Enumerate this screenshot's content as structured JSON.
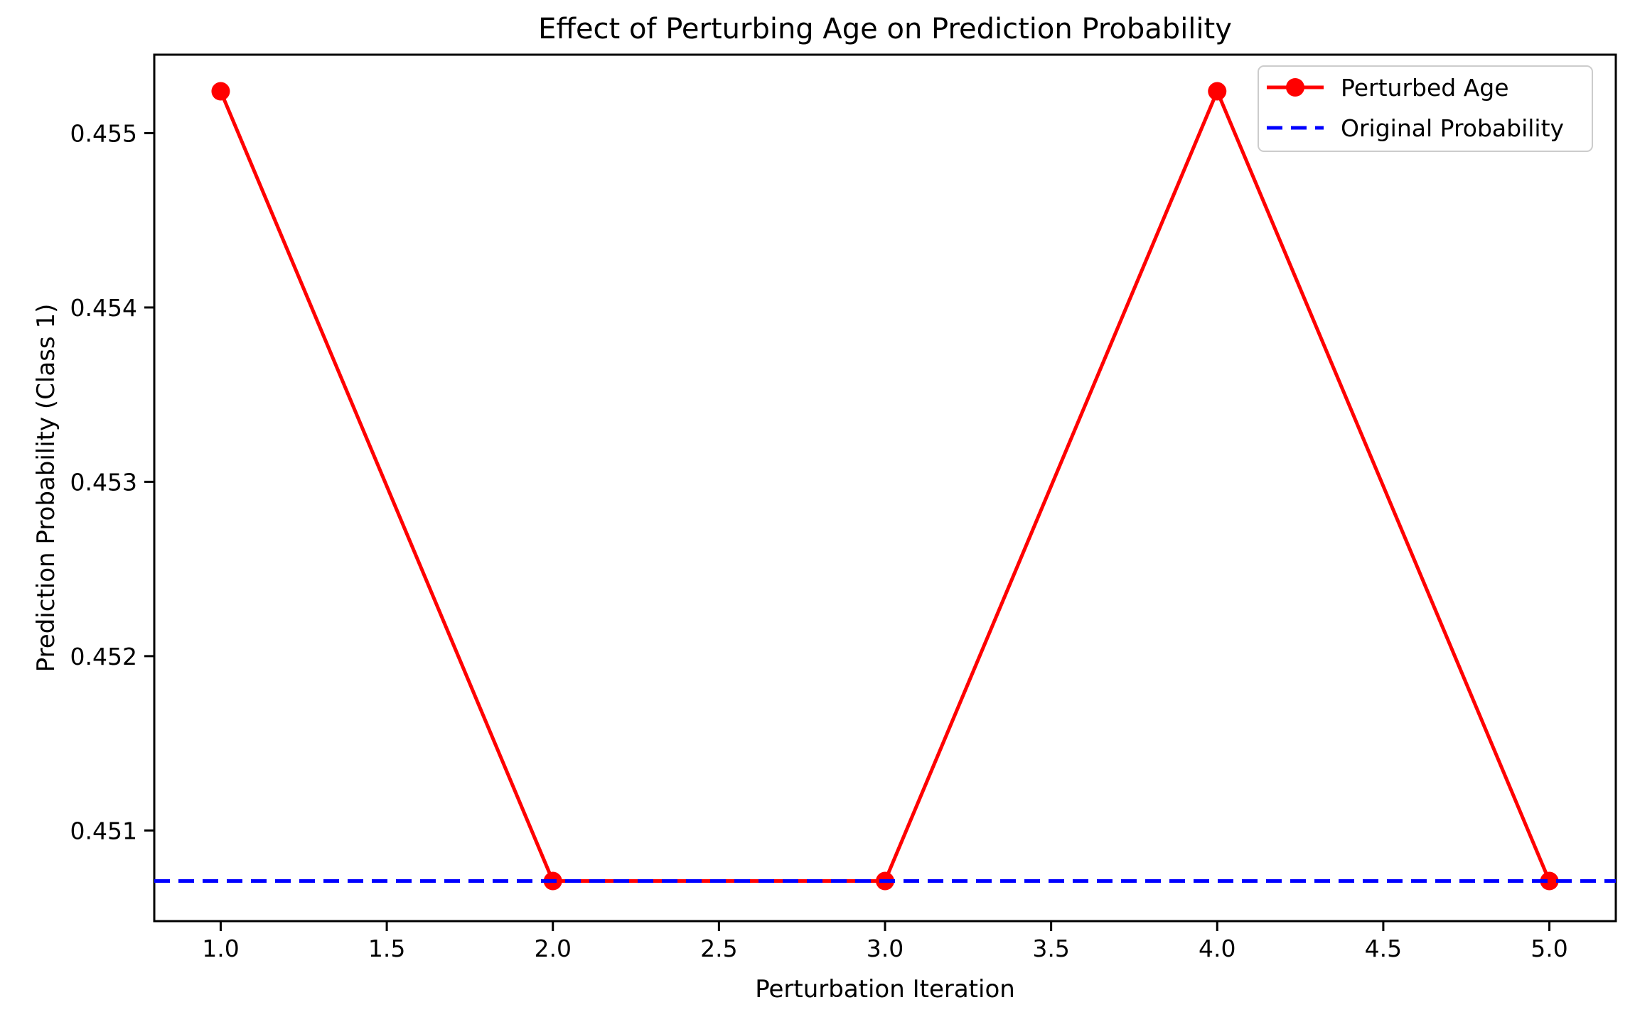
{
  "chart_data": {
    "type": "line",
    "title": "Effect of Perturbing Age on Prediction Probability",
    "xlabel": "Perturbation Iteration",
    "ylabel": "Prediction Probability (Class 1)",
    "x": [
      1,
      2,
      3,
      4,
      5
    ],
    "series": [
      {
        "name": "Perturbed Age",
        "color": "#ff0000",
        "line_style": "solid",
        "marker": "circle",
        "values": [
          0.45524,
          0.45071,
          0.45071,
          0.45524,
          0.45071
        ]
      },
      {
        "name": "Original Probability",
        "color": "#0000ff",
        "line_style": "dashed",
        "marker": "none",
        "kind": "hline",
        "value": 0.45071
      }
    ],
    "xlim": [
      0.8,
      5.2
    ],
    "ylim": [
      0.45048,
      0.45545
    ],
    "xticks": {
      "values": [
        1.0,
        1.5,
        2.0,
        2.5,
        3.0,
        3.5,
        4.0,
        4.5,
        5.0
      ],
      "labels": [
        "1.0",
        "1.5",
        "2.0",
        "2.5",
        "3.0",
        "3.5",
        "4.0",
        "4.5",
        "5.0"
      ]
    },
    "yticks": {
      "values": [
        0.451,
        0.452,
        0.453,
        0.454,
        0.455
      ],
      "labels": [
        "0.451",
        "0.452",
        "0.453",
        "0.454",
        "0.455"
      ]
    },
    "grid": false,
    "legend_position": "upper right",
    "axis_color": "#000000",
    "text_color": "#000000",
    "legend_border_color": "#cccccc",
    "background_color": "#ffffff"
  }
}
